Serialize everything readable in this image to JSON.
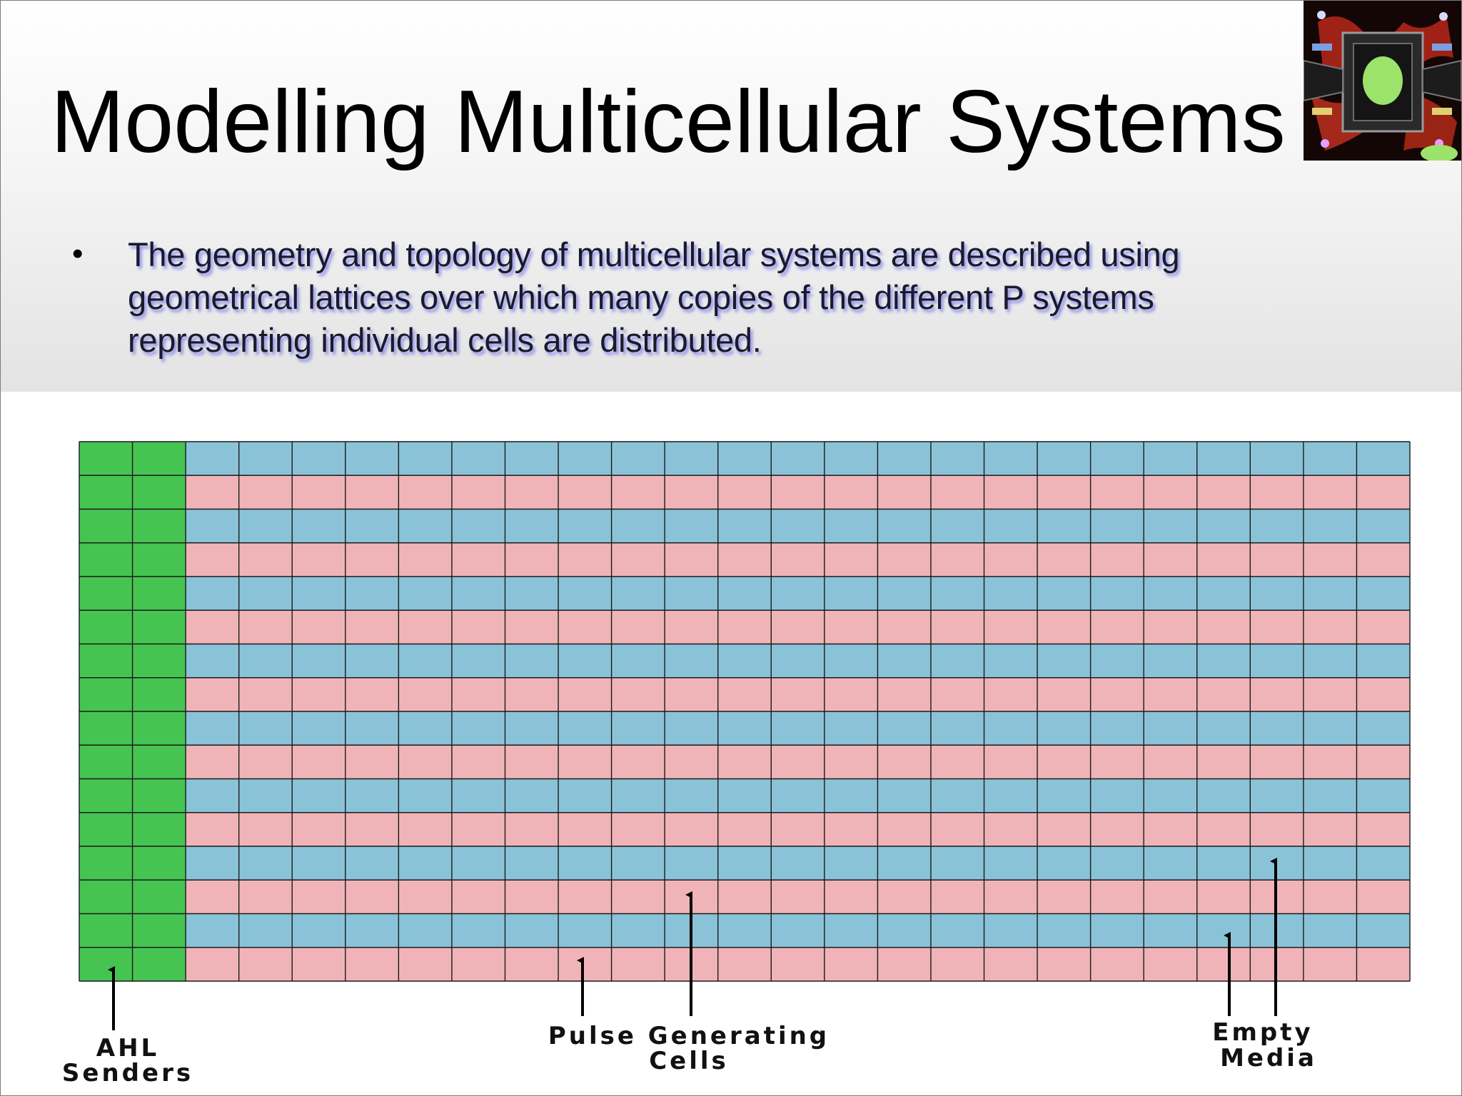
{
  "slide": {
    "title": "Modelling Multicellular Systems",
    "bullets": [
      "The geometry and topology of multicellular systems are described using geometrical lattices over which many copies of the different P systems representing individual cells are distributed."
    ]
  },
  "thumbnail": {
    "icon": "lattice-simulation-thumbnail-icon",
    "colors": {
      "background": "#150606",
      "red": "#b8281a",
      "green": "#9be36a"
    }
  },
  "lattice": {
    "columns": 25,
    "rows": 16,
    "sender_columns": 2,
    "colors": {
      "sender": "#46c452",
      "row_blue": "#8ac3d8",
      "row_pink": "#f0b4b8",
      "grid_line": "#1a1a1a"
    }
  },
  "annotations": {
    "senders_label": [
      "AHL",
      "Senders"
    ],
    "pulse_label": [
      "Pulse Generating",
      "Cells"
    ],
    "empty_label": [
      "Empty",
      "Media"
    ]
  }
}
